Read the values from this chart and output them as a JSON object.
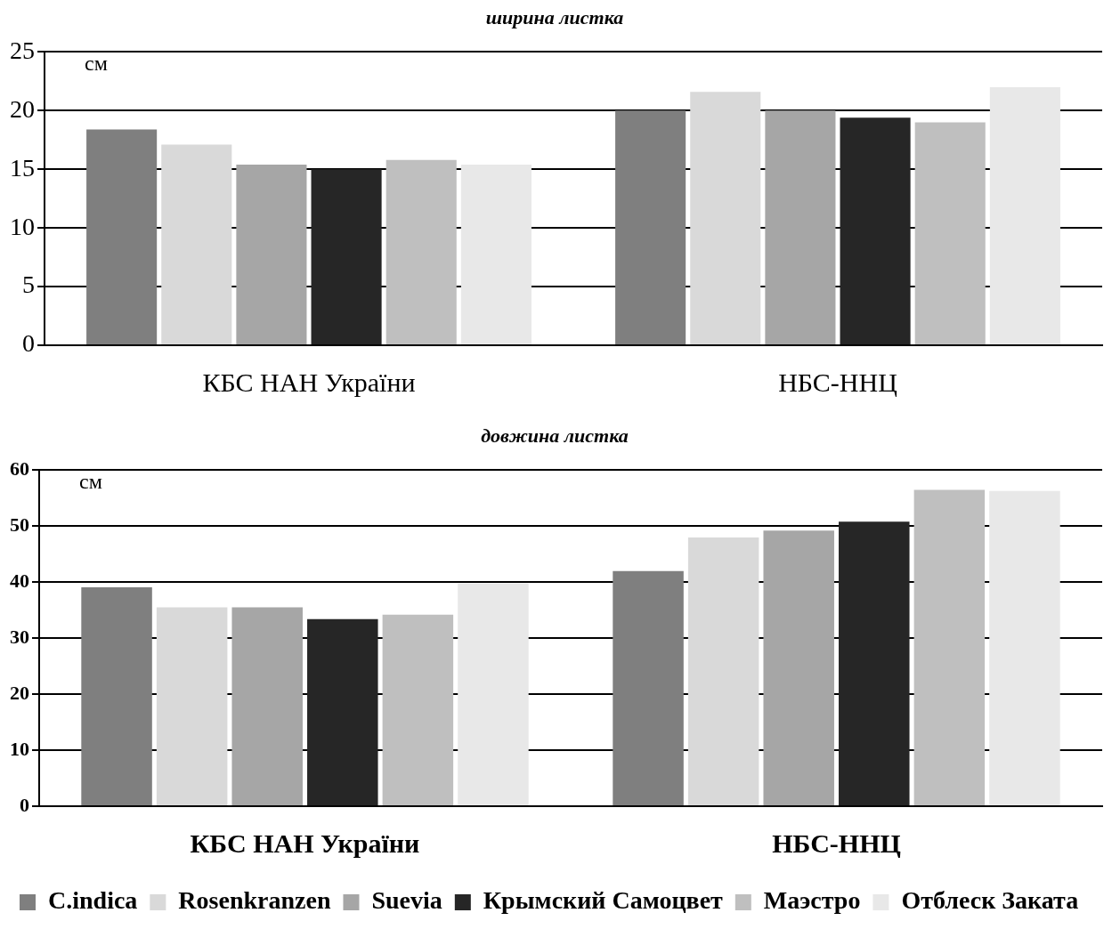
{
  "chart_data": [
    {
      "type": "bar",
      "title": "ширина листка",
      "categories": [
        "КБС НАН України",
        "НБС-ННЦ"
      ],
      "series": [
        {
          "color": "#7f7f7f",
          "values": [
            18.4,
            20.0
          ]
        },
        {
          "color": "#d9d9d9",
          "values": [
            17.1,
            21.6
          ]
        },
        {
          "color": "#a6a6a6",
          "values": [
            15.4,
            20.0
          ]
        },
        {
          "color": "#262626",
          "values": [
            15.0,
            19.4
          ]
        },
        {
          "color": "#bfbfbf",
          "values": [
            15.8,
            19.0
          ]
        },
        {
          "color": "#e8e8e8",
          "values": [
            15.4,
            22.0
          ]
        }
      ],
      "ylim": [
        0,
        25
      ],
      "yticks": [
        0,
        5,
        10,
        15,
        20,
        25
      ],
      "grid": "y",
      "legend": false,
      "annotations": [
        "см"
      ]
    },
    {
      "type": "bar",
      "title": "довжина листка",
      "categories": [
        "КБС НАН України",
        "НБС-ННЦ"
      ],
      "series": [
        {
          "name": "C.indica",
          "color": "#7f7f7f",
          "values": [
            39.1,
            42.0
          ]
        },
        {
          "name": "Rosenkranzen",
          "color": "#d9d9d9",
          "values": [
            35.5,
            48.0
          ]
        },
        {
          "name": "Suevia",
          "color": "#a6a6a6",
          "values": [
            35.5,
            49.2
          ]
        },
        {
          "name": "Крымский Самоцвет",
          "color": "#262626",
          "values": [
            33.4,
            50.8
          ]
        },
        {
          "name": "Маэстро",
          "color": "#bfbfbf",
          "values": [
            34.2,
            56.5
          ]
        },
        {
          "name": "Отблеск Заката",
          "color": "#e8e8e8",
          "values": [
            39.8,
            56.3
          ]
        }
      ],
      "ylim": [
        0,
        60
      ],
      "yticks": [
        0,
        10,
        20,
        30,
        40,
        50,
        60
      ],
      "grid": "y",
      "legend": "bottom",
      "annotations": [
        "см"
      ]
    }
  ]
}
